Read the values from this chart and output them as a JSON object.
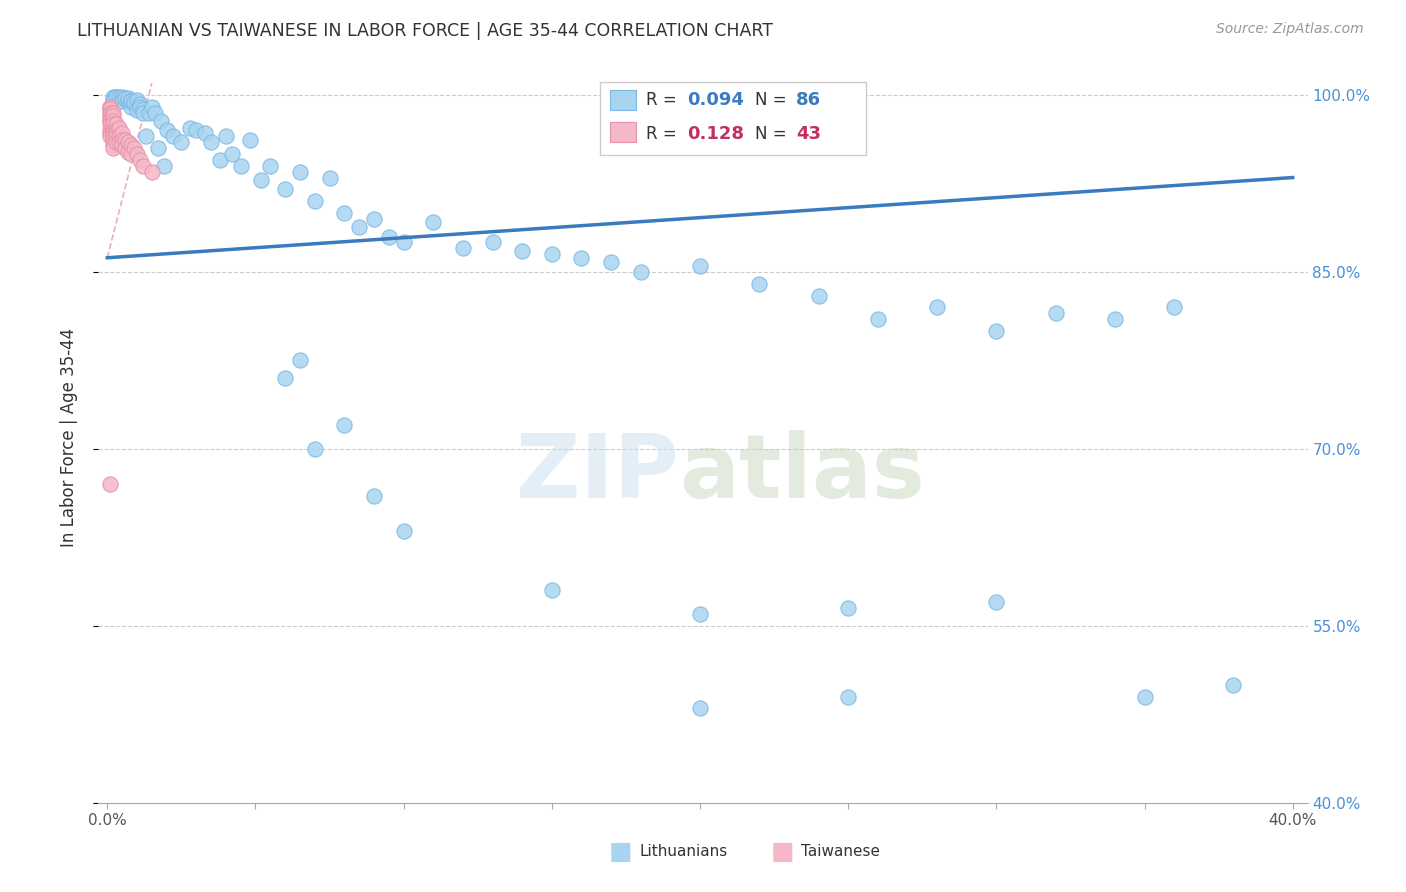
{
  "title": "LITHUANIAN VS TAIWANESE IN LABOR FORCE | AGE 35-44 CORRELATION CHART",
  "source": "Source: ZipAtlas.com",
  "R_blue": 0.094,
  "N_blue": 86,
  "R_pink": 0.128,
  "N_pink": 43,
  "blue_color": "#a8d4f0",
  "blue_edge": "#7ab8e8",
  "pink_color": "#f5b8c8",
  "pink_edge": "#e890a8",
  "trend_blue": "#3a7abf",
  "trend_pink": "#e8a0b0",
  "ylabel_label": "In Labor Force | Age 35-44",
  "watermark_zip": "ZIP",
  "watermark_atlas": "atlas",
  "legend_label_blue": "Lithuanians",
  "legend_label_pink": "Taiwanese",
  "xlim": [
    0.0,
    0.4
  ],
  "ylim": [
    0.4,
    1.02
  ],
  "ytick_vals": [
    0.4,
    0.55,
    0.7,
    0.85,
    1.0
  ],
  "ytick_labels": [
    "40.0%",
    "55.0%",
    "70.0%",
    "85.0%",
    "100.0%"
  ],
  "xtick_vals": [
    0.0,
    0.05,
    0.1,
    0.15,
    0.2,
    0.25,
    0.3,
    0.35,
    0.4
  ],
  "xtick_labels": [
    "0.0%",
    "",
    "",
    "",
    "",
    "",
    "",
    "",
    "40.0%"
  ],
  "blue_x": [
    0.001,
    0.002,
    0.002,
    0.003,
    0.003,
    0.004,
    0.004,
    0.005,
    0.005,
    0.005,
    0.006,
    0.006,
    0.007,
    0.007,
    0.008,
    0.008,
    0.008,
    0.009,
    0.009,
    0.01,
    0.01,
    0.011,
    0.011,
    0.012,
    0.012,
    0.013,
    0.014,
    0.015,
    0.016,
    0.017,
    0.018,
    0.019,
    0.02,
    0.022,
    0.025,
    0.028,
    0.03,
    0.033,
    0.035,
    0.038,
    0.04,
    0.042,
    0.045,
    0.048,
    0.052,
    0.055,
    0.06,
    0.065,
    0.07,
    0.075,
    0.08,
    0.085,
    0.09,
    0.095,
    0.1,
    0.11,
    0.12,
    0.13,
    0.14,
    0.15,
    0.16,
    0.17,
    0.18,
    0.2,
    0.22,
    0.24,
    0.26,
    0.28,
    0.3,
    0.32,
    0.34,
    0.36,
    0.06,
    0.065,
    0.07,
    0.08,
    0.09,
    0.1,
    0.15,
    0.2,
    0.25,
    0.3,
    0.2,
    0.25,
    0.35,
    0.38
  ],
  "blue_y": [
    0.99,
    0.998,
    0.996,
    0.998,
    0.998,
    0.995,
    0.998,
    0.997,
    0.998,
    0.995,
    0.997,
    0.997,
    0.995,
    0.997,
    0.996,
    0.99,
    0.995,
    0.993,
    0.994,
    0.996,
    0.987,
    0.992,
    0.99,
    0.988,
    0.985,
    0.965,
    0.985,
    0.99,
    0.985,
    0.955,
    0.978,
    0.94,
    0.97,
    0.965,
    0.96,
    0.972,
    0.97,
    0.968,
    0.96,
    0.945,
    0.965,
    0.95,
    0.94,
    0.962,
    0.928,
    0.94,
    0.92,
    0.935,
    0.91,
    0.93,
    0.9,
    0.888,
    0.895,
    0.88,
    0.875,
    0.892,
    0.87,
    0.875,
    0.868,
    0.865,
    0.862,
    0.858,
    0.85,
    0.855,
    0.84,
    0.83,
    0.81,
    0.82,
    0.8,
    0.815,
    0.81,
    0.82,
    0.76,
    0.775,
    0.7,
    0.72,
    0.66,
    0.63,
    0.58,
    0.56,
    0.565,
    0.57,
    0.48,
    0.49,
    0.49,
    0.5
  ],
  "pink_x": [
    0.001,
    0.001,
    0.001,
    0.001,
    0.001,
    0.001,
    0.001,
    0.001,
    0.001,
    0.001,
    0.002,
    0.002,
    0.002,
    0.002,
    0.002,
    0.002,
    0.002,
    0.002,
    0.002,
    0.002,
    0.003,
    0.003,
    0.003,
    0.003,
    0.003,
    0.004,
    0.004,
    0.004,
    0.005,
    0.005,
    0.005,
    0.006,
    0.006,
    0.007,
    0.007,
    0.008,
    0.008,
    0.009,
    0.01,
    0.011,
    0.012,
    0.015,
    0.001
  ],
  "pink_y": [
    0.99,
    0.988,
    0.985,
    0.983,
    0.98,
    0.978,
    0.975,
    0.97,
    0.968,
    0.965,
    0.985,
    0.982,
    0.978,
    0.975,
    0.97,
    0.968,
    0.965,
    0.962,
    0.958,
    0.955,
    0.975,
    0.97,
    0.968,
    0.965,
    0.96,
    0.972,
    0.965,
    0.96,
    0.968,
    0.962,
    0.958,
    0.962,
    0.955,
    0.96,
    0.952,
    0.958,
    0.95,
    0.955,
    0.95,
    0.945,
    0.94,
    0.935,
    0.67
  ],
  "trend_blue_x0": 0.0,
  "trend_blue_x1": 0.4,
  "trend_blue_y0": 0.862,
  "trend_blue_y1": 0.93,
  "trend_pink_x0": 0.0,
  "trend_pink_x1": 0.015,
  "trend_pink_y0": 0.862,
  "trend_pink_y1": 1.01
}
